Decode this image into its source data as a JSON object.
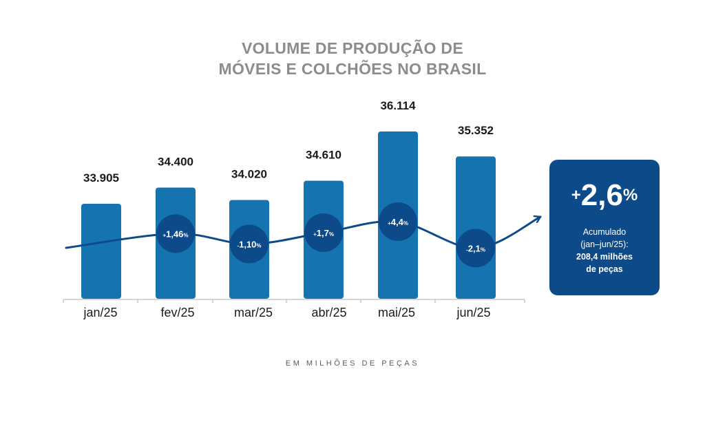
{
  "title": {
    "line1": "VOLUME DE PRODUÇÃO DE",
    "line2": "MÓVEIS E COLCHÕES NO BRASIL"
  },
  "colors": {
    "bar": "#1573b0",
    "circle": "#0d4a8a",
    "line": "#0d4a8a",
    "card": "#0d4a8a",
    "axis": "#c8c8c8"
  },
  "chart_data": {
    "type": "bar",
    "categories": [
      "jan/25",
      "fev/25",
      "mar/25",
      "abr/25",
      "mai/25",
      "jun/25"
    ],
    "values": [
      33905,
      34400,
      34020,
      34610,
      36114,
      35352
    ],
    "value_labels": [
      "33.905",
      "34.400",
      "34.020",
      "34.610",
      "36.114",
      "35.352"
    ],
    "changes": [
      {
        "category": "fev/25",
        "sign": "+",
        "value": "1,46",
        "unit": "%",
        "numeric": 1.46
      },
      {
        "category": "mar/25",
        "sign": "-",
        "value": "1,10",
        "unit": "%",
        "numeric": -1.1
      },
      {
        "category": "abr/25",
        "sign": "+",
        "value": "1,7",
        "unit": "%",
        "numeric": 1.7
      },
      {
        "category": "mai/25",
        "sign": "+",
        "value": "4,4",
        "unit": "%",
        "numeric": 4.4
      },
      {
        "category": "jun/25",
        "sign": "-",
        "value": "2,1",
        "unit": "%",
        "numeric": -2.1
      }
    ],
    "footnote": "EM MILHÕES DE PEÇAS",
    "ylabel": "",
    "xlabel": ""
  },
  "summary": {
    "sign": "+",
    "value": "2,6",
    "unit": "%",
    "line1": "Acumulado",
    "line2": "(jan–jun/25):",
    "line3": "208,4 milhões",
    "line4": "de peças"
  }
}
